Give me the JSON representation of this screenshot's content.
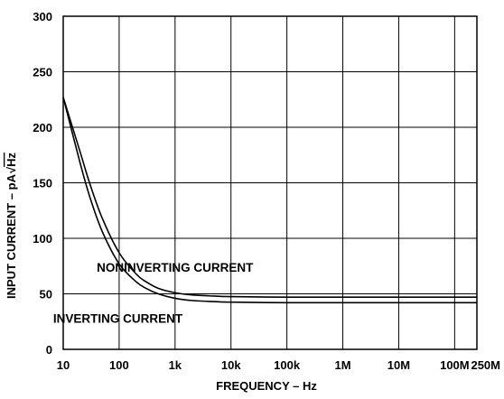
{
  "chart_data": {
    "type": "line",
    "title": "",
    "xlabel": "FREQUENCY – Hz",
    "ylabel_text": "INPUT CURRENT – pA",
    "ylabel_radicand": "Hz",
    "x_scale": "log",
    "x_ticks": [
      {
        "value": 10,
        "label": "10"
      },
      {
        "value": 100,
        "label": "100"
      },
      {
        "value": 1000,
        "label": "1k"
      },
      {
        "value": 10000,
        "label": "10k"
      },
      {
        "value": 100000,
        "label": "100k"
      },
      {
        "value": 1000000,
        "label": "1M"
      },
      {
        "value": 10000000,
        "label": "10M"
      },
      {
        "value": 100000000,
        "label": "100M"
      },
      {
        "value": 250000000,
        "label": "250M"
      }
    ],
    "xlim": [
      10,
      250000000
    ],
    "ylim": [
      0,
      300
    ],
    "y_ticks": [
      {
        "value": 0,
        "label": "0"
      },
      {
        "value": 50,
        "label": "50"
      },
      {
        "value": 100,
        "label": "100"
      },
      {
        "value": 150,
        "label": "150"
      },
      {
        "value": 200,
        "label": "200"
      },
      {
        "value": 250,
        "label": "250"
      },
      {
        "value": 300,
        "label": "300"
      }
    ],
    "grid": true,
    "series": [
      {
        "name": "NONINVERTING CURRENT",
        "x": [
          10,
          20,
          30,
          50,
          100,
          200,
          300,
          500,
          1000,
          2000,
          5000,
          10000,
          100000,
          1000000,
          10000000,
          100000000,
          250000000
        ],
        "y": [
          227,
          178,
          149,
          118,
          87,
          68,
          61,
          55,
          51,
          49,
          48,
          47.5,
          47,
          47,
          47,
          47,
          47
        ]
      },
      {
        "name": "INVERTING CURRENT",
        "x": [
          10,
          20,
          30,
          50,
          100,
          200,
          300,
          500,
          1000,
          2000,
          5000,
          10000,
          100000,
          1000000,
          10000000,
          100000000,
          250000000
        ],
        "y": [
          227,
          168,
          137,
          106,
          77,
          61,
          55,
          50,
          46,
          44,
          43,
          42.5,
          42,
          42,
          42,
          42,
          42
        ]
      }
    ],
    "annotations": [
      {
        "text": "NONINVERTING CURRENT",
        "x": 1000,
        "y": 70
      },
      {
        "text": "INVERTING CURRENT",
        "x": 95,
        "y": 24
      }
    ]
  }
}
